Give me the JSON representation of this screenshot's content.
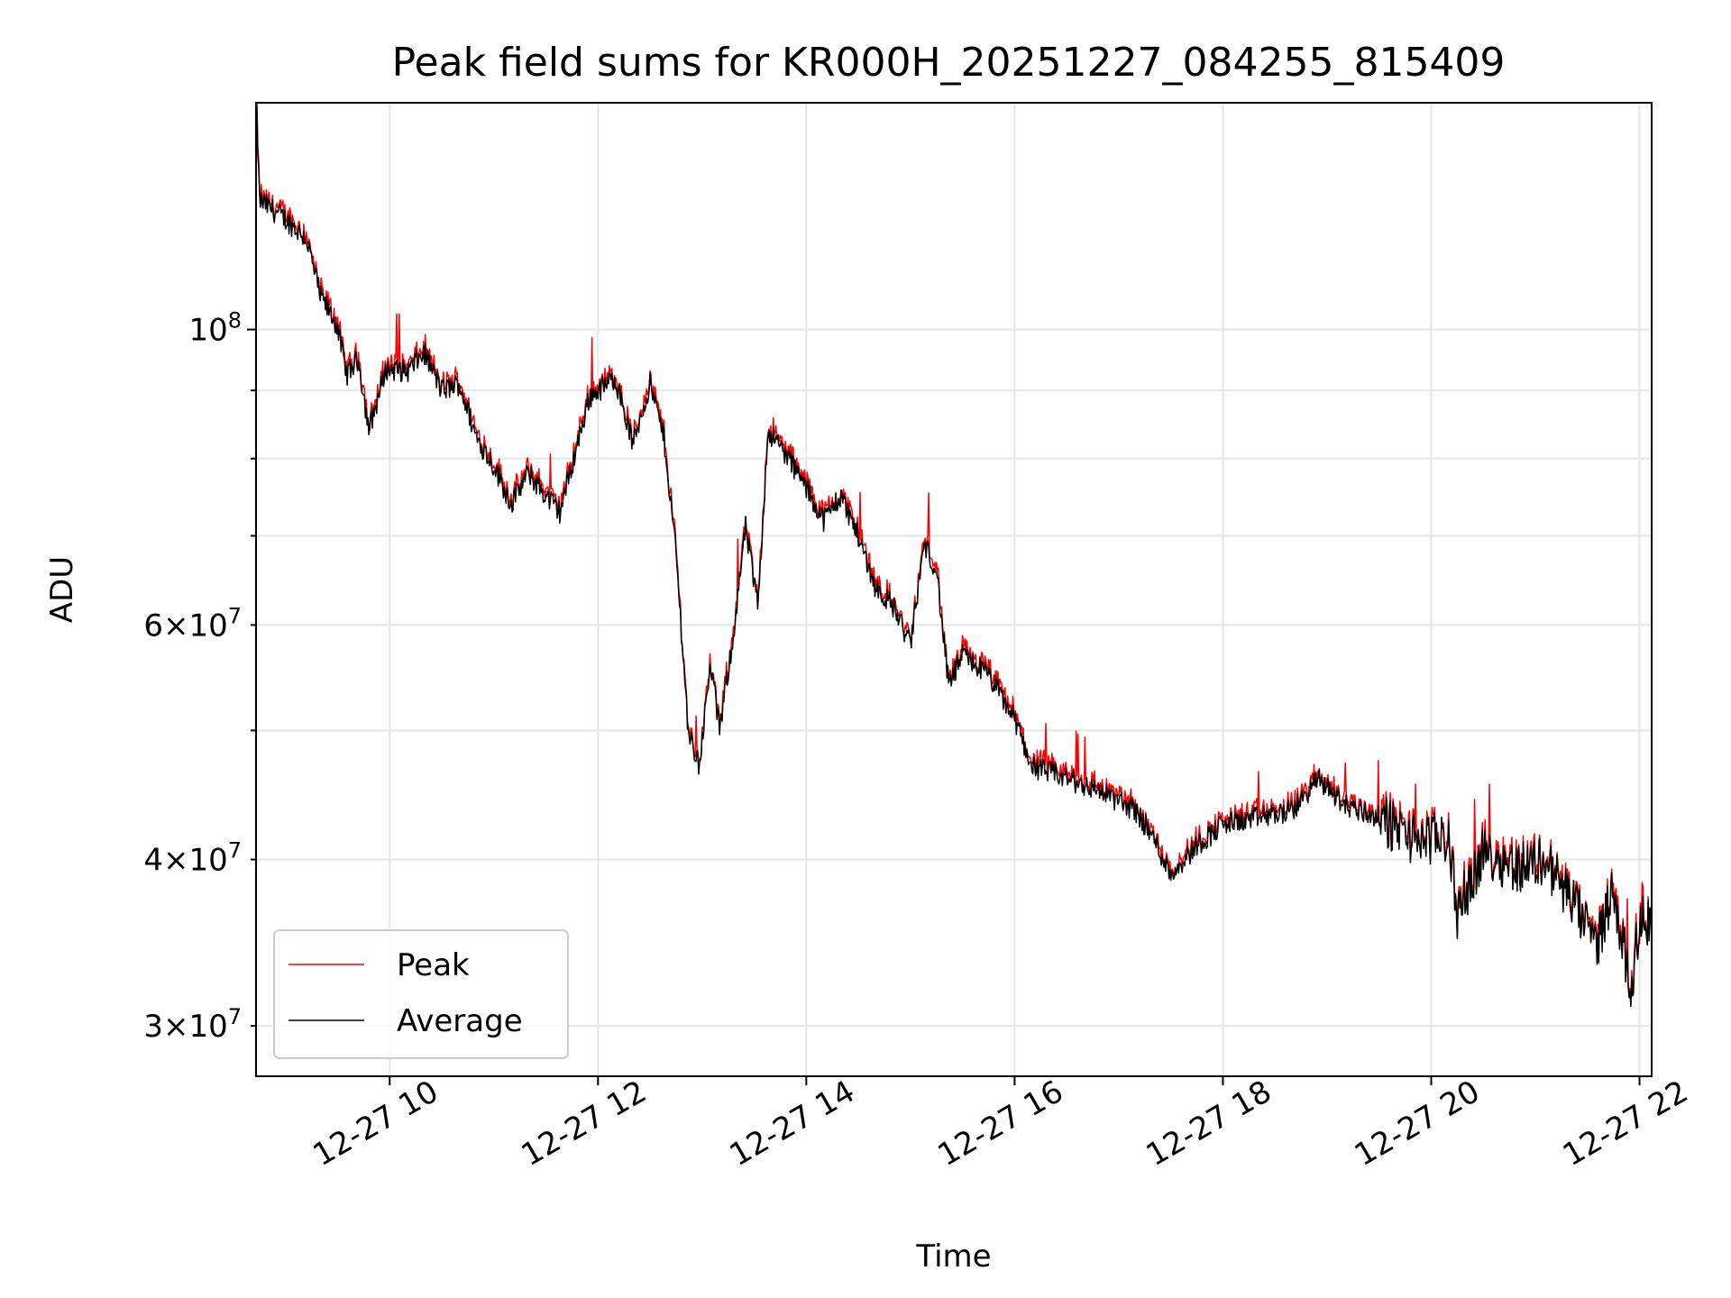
{
  "chart_data": {
    "type": "line",
    "title": "Peak field sums for KR000H_20251227_084255_815409",
    "xlabel": "Time",
    "ylabel": "ADU",
    "yscale": "log",
    "grid": true,
    "legend_position": "lower-left",
    "xlim": [
      "2025-12-27 08:43",
      "2025-12-27 22:07"
    ],
    "ylim": [
      27500000,
      148000000
    ],
    "x_ticks": [
      "12-27 10",
      "12-27 12",
      "12-27 14",
      "12-27 16",
      "12-27 18",
      "12-27 20",
      "12-27 22"
    ],
    "y_ticks_major": [
      {
        "label_base": "10",
        "label_exp": "8",
        "value": 100000000
      }
    ],
    "y_ticks_minor": [
      {
        "label_base": "3×10",
        "label_exp": "7",
        "value": 30000000
      },
      {
        "label_base": "4×10",
        "label_exp": "7",
        "value": 40000000
      },
      {
        "label_base": "6×10",
        "label_exp": "7",
        "value": 60000000
      }
    ],
    "series": [
      {
        "name": "Peak",
        "color": "#ff0000",
        "points": [
          [
            "2025-12-27 08:43",
            150000000
          ],
          [
            "2025-12-27 08:45",
            125000000
          ],
          [
            "2025-12-27 09:00",
            121000000
          ],
          [
            "2025-12-27 09:12",
            117000000
          ],
          [
            "2025-12-27 09:20",
            106000000
          ],
          [
            "2025-12-27 09:30",
            100500000
          ],
          [
            "2025-12-27 09:35",
            92500000
          ],
          [
            "2025-12-27 09:42",
            95000000
          ],
          [
            "2025-12-27 09:48",
            84000000
          ],
          [
            "2025-12-27 09:58",
            93500000
          ],
          [
            "2025-12-27 10:10",
            93000000
          ],
          [
            "2025-12-27 10:20",
            96000000
          ],
          [
            "2025-12-27 10:30",
            90000000
          ],
          [
            "2025-12-27 10:40",
            91000000
          ],
          [
            "2025-12-27 10:50",
            83000000
          ],
          [
            "2025-12-27 11:00",
            79000000
          ],
          [
            "2025-12-27 11:10",
            74000000
          ],
          [
            "2025-12-27 11:20",
            78000000
          ],
          [
            "2025-12-27 11:30",
            75000000
          ],
          [
            "2025-12-27 11:38",
            73000000
          ],
          [
            "2025-12-27 11:45",
            79000000
          ],
          [
            "2025-12-27 11:55",
            89000000
          ],
          [
            "2025-12-27 12:10",
            92000000
          ],
          [
            "2025-12-27 12:20",
            82000000
          ],
          [
            "2025-12-27 12:30",
            91000000
          ],
          [
            "2025-12-27 12:38",
            83000000
          ],
          [
            "2025-12-27 12:45",
            68000000
          ],
          [
            "2025-12-27 12:52",
            50000000
          ],
          [
            "2025-12-27 12:58",
            47000000
          ],
          [
            "2025-12-27 13:05",
            56000000
          ],
          [
            "2025-12-27 13:10",
            50000000
          ],
          [
            "2025-12-27 13:18",
            59000000
          ],
          [
            "2025-12-27 13:25",
            71000000
          ],
          [
            "2025-12-27 13:32",
            62000000
          ],
          [
            "2025-12-27 13:38",
            84000000
          ],
          [
            "2025-12-27 13:50",
            80000000
          ],
          [
            "2025-12-27 14:00",
            76000000
          ],
          [
            "2025-12-27 14:10",
            72000000
          ],
          [
            "2025-12-27 14:20",
            75000000
          ],
          [
            "2025-12-27 14:30",
            70000000
          ],
          [
            "2025-12-27 14:40",
            64000000
          ],
          [
            "2025-12-27 14:50",
            62000000
          ],
          [
            "2025-12-27 15:00",
            58000000
          ],
          [
            "2025-12-27 15:08",
            69000000
          ],
          [
            "2025-12-27 15:15",
            66000000
          ],
          [
            "2025-12-27 15:22",
            54000000
          ],
          [
            "2025-12-27 15:30",
            57000000
          ],
          [
            "2025-12-27 15:45",
            55000000
          ],
          [
            "2025-12-27 16:00",
            51000000
          ],
          [
            "2025-12-27 16:10",
            47000000
          ],
          [
            "2025-12-27 16:30",
            46000000
          ],
          [
            "2025-12-27 16:50",
            45000000
          ],
          [
            "2025-12-27 17:10",
            43500000
          ],
          [
            "2025-12-27 17:20",
            41500000
          ],
          [
            "2025-12-27 17:30",
            39000000
          ],
          [
            "2025-12-27 17:45",
            41000000
          ],
          [
            "2025-12-27 18:00",
            42500000
          ],
          [
            "2025-12-27 18:20",
            43000000
          ],
          [
            "2025-12-27 18:40",
            43500000
          ],
          [
            "2025-12-27 18:55",
            46000000
          ],
          [
            "2025-12-27 19:10",
            44000000
          ],
          [
            "2025-12-27 19:30",
            43000000
          ],
          [
            "2025-12-27 19:50",
            41500000
          ],
          [
            "2025-12-27 20:10",
            41500000
          ],
          [
            "2025-12-27 20:30",
            40500000
          ],
          [
            "2025-12-27 20:50",
            39500000
          ],
          [
            "2025-12-27 21:05",
            40000000
          ],
          [
            "2025-12-27 21:20",
            37500000
          ],
          [
            "2025-12-27 21:35",
            34500000
          ],
          [
            "2025-12-27 21:45",
            38000000
          ],
          [
            "2025-12-27 21:55",
            32000000
          ],
          [
            "2025-12-27 22:00",
            36000000
          ],
          [
            "2025-12-27 20:15",
            36500000
          ]
        ]
      },
      {
        "name": "Average",
        "color": "#000000",
        "points": []
      }
    ]
  }
}
